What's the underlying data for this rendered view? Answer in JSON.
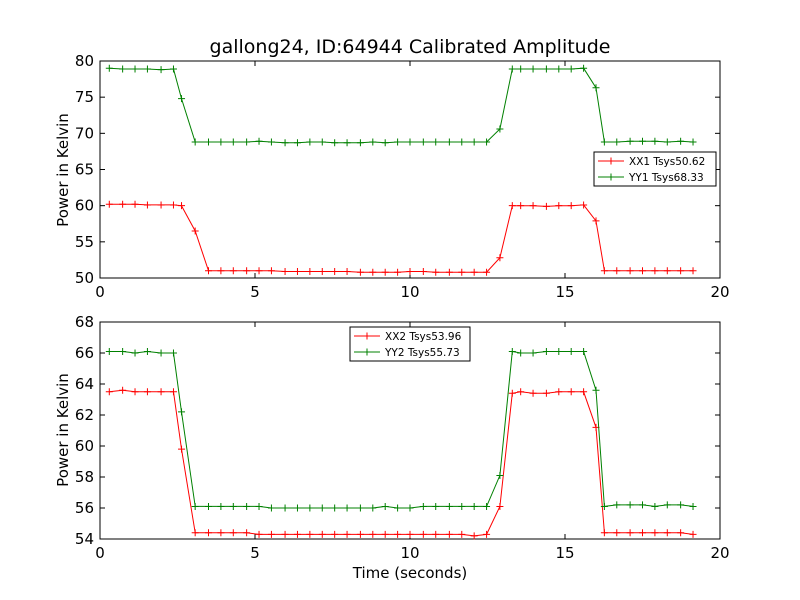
{
  "chart_data": {
    "title": "gallong24, ID:64944 Calibrated Amplitude",
    "charts": [
      {
        "type": "line",
        "ylabel": "Power in Kelvin",
        "xlabel": "",
        "xlim": [
          0,
          20
        ],
        "ylim": [
          50,
          80
        ],
        "xticks": [
          0,
          5,
          10,
          15,
          20
        ],
        "yticks": [
          50,
          55,
          60,
          65,
          70,
          75,
          80
        ],
        "legend_position": "center-right",
        "marker": "+",
        "x": [
          0.3,
          0.73,
          1.13,
          1.53,
          1.97,
          2.37,
          2.63,
          3.07,
          3.5,
          3.9,
          4.3,
          4.73,
          5.13,
          5.53,
          5.97,
          6.37,
          6.77,
          7.17,
          7.57,
          7.97,
          8.4,
          8.8,
          9.2,
          9.6,
          10.0,
          10.43,
          10.83,
          11.27,
          11.67,
          12.07,
          12.47,
          12.9,
          13.3,
          13.57,
          13.97,
          14.4,
          14.8,
          15.2,
          15.6,
          16.0,
          16.27,
          16.67,
          17.1,
          17.5,
          17.9,
          18.3,
          18.73,
          19.13
        ],
        "series": [
          {
            "name": "XX1 Tsys50.62",
            "color": "#ff0000",
            "values": [
              60.2,
              60.2,
              60.2,
              60.1,
              60.1,
              60.1,
              60.0,
              56.5,
              51.0,
              51.0,
              51.0,
              51.0,
              51.0,
              51.0,
              50.9,
              50.9,
              50.9,
              50.9,
              50.9,
              50.9,
              50.8,
              50.8,
              50.8,
              50.8,
              50.9,
              50.9,
              50.8,
              50.8,
              50.8,
              50.8,
              50.8,
              52.8,
              60.0,
              60.0,
              60.0,
              59.9,
              60.0,
              60.0,
              60.1,
              57.9,
              51.0,
              51.0,
              51.0,
              51.0,
              51.0,
              51.0,
              51.0,
              51.0
            ]
          },
          {
            "name": "YY1 Tsys68.33",
            "color": "#008000",
            "values": [
              79.0,
              78.9,
              78.9,
              78.9,
              78.8,
              78.9,
              74.8,
              68.8,
              68.8,
              68.8,
              68.8,
              68.8,
              68.9,
              68.8,
              68.7,
              68.7,
              68.8,
              68.8,
              68.7,
              68.7,
              68.7,
              68.8,
              68.7,
              68.8,
              68.8,
              68.8,
              68.8,
              68.8,
              68.8,
              68.8,
              68.8,
              70.6,
              78.9,
              78.9,
              78.9,
              78.9,
              78.9,
              78.9,
              79.0,
              76.3,
              68.8,
              68.8,
              68.9,
              68.9,
              68.9,
              68.8,
              68.9,
              68.8
            ]
          }
        ]
      },
      {
        "type": "line",
        "ylabel": "Power in Kelvin",
        "xlabel": "Time (seconds)",
        "xlim": [
          0,
          20
        ],
        "ylim": [
          54,
          68
        ],
        "xticks": [
          0,
          5,
          10,
          15,
          20
        ],
        "yticks": [
          54,
          56,
          58,
          60,
          62,
          64,
          66,
          68
        ],
        "legend_position": "upper-center",
        "marker": "+",
        "x": [
          0.3,
          0.73,
          1.13,
          1.53,
          1.97,
          2.37,
          2.63,
          3.07,
          3.5,
          3.9,
          4.3,
          4.73,
          5.13,
          5.53,
          5.97,
          6.37,
          6.77,
          7.17,
          7.57,
          7.97,
          8.4,
          8.8,
          9.2,
          9.6,
          10.0,
          10.43,
          10.83,
          11.27,
          11.67,
          12.07,
          12.47,
          12.9,
          13.3,
          13.57,
          13.97,
          14.4,
          14.8,
          15.2,
          15.6,
          16.0,
          16.27,
          16.67,
          17.1,
          17.5,
          17.9,
          18.3,
          18.73,
          19.13
        ],
        "series": [
          {
            "name": "XX2 Tsys53.96",
            "color": "#ff0000",
            "values": [
              63.5,
              63.6,
              63.5,
              63.5,
              63.5,
              63.5,
              59.8,
              54.4,
              54.4,
              54.4,
              54.4,
              54.4,
              54.3,
              54.3,
              54.3,
              54.3,
              54.3,
              54.3,
              54.3,
              54.3,
              54.3,
              54.3,
              54.3,
              54.3,
              54.3,
              54.3,
              54.3,
              54.3,
              54.3,
              54.2,
              54.3,
              56.1,
              63.4,
              63.5,
              63.4,
              63.4,
              63.5,
              63.5,
              63.5,
              61.2,
              54.4,
              54.4,
              54.4,
              54.4,
              54.4,
              54.4,
              54.4,
              54.3
            ]
          },
          {
            "name": "YY2 Tsys55.73",
            "color": "#008000",
            "values": [
              66.1,
              66.1,
              66.0,
              66.1,
              66.0,
              66.0,
              62.2,
              56.1,
              56.1,
              56.1,
              56.1,
              56.1,
              56.1,
              56.0,
              56.0,
              56.0,
              56.0,
              56.0,
              56.0,
              56.0,
              56.0,
              56.0,
              56.1,
              56.0,
              56.0,
              56.1,
              56.1,
              56.1,
              56.1,
              56.1,
              56.1,
              58.1,
              66.1,
              66.0,
              66.0,
              66.1,
              66.1,
              66.1,
              66.1,
              63.6,
              56.1,
              56.2,
              56.2,
              56.2,
              56.1,
              56.2,
              56.2,
              56.1
            ]
          }
        ]
      }
    ]
  }
}
